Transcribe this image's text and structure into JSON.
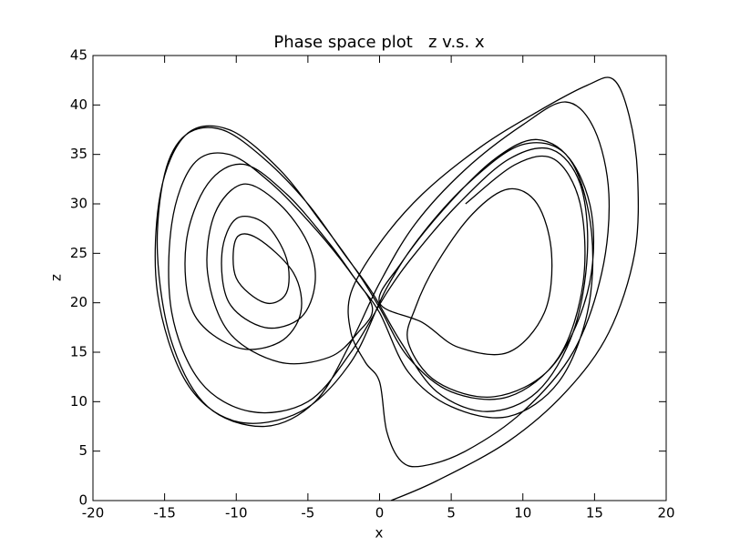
{
  "chart_data": {
    "type": "line",
    "title": "Phase space plot   z v.s. x",
    "xlabel": "x",
    "ylabel": "z",
    "color": "#000000",
    "x": [
      0.8,
      4,
      9,
      13,
      16,
      17.8,
      18,
      17.4,
      16.3,
      14.5,
      11,
      7,
      3,
      0,
      -2,
      -2,
      -1,
      0,
      0.5,
      1.5,
      3,
      6,
      10,
      13.5,
      15.5,
      16,
      15,
      13,
      10,
      6,
      2.5,
      0,
      -2,
      -4.5,
      -8,
      -12,
      -14.5,
      -15.5,
      -15,
      -13.5,
      -11,
      -8,
      -5,
      -2.5,
      -0.5,
      1.5,
      4,
      7.5,
      11,
      13.5,
      14.5,
      14,
      12,
      9,
      5.5,
      2.5,
      0.5,
      -2,
      -5,
      -9,
      -12.5,
      -14.5,
      -14.5,
      -13,
      -10.5,
      -7.5,
      -4.5,
      -2,
      -0.5,
      -1.5,
      -3.5,
      -7,
      -10.5,
      -12,
      -11.5,
      -9.5,
      -7,
      -5,
      -4.5,
      -5.5,
      -8,
      -10.5,
      -11,
      -10,
      -8,
      -6.5,
      -6.5,
      -8,
      -10,
      -10,
      -8.5,
      -6,
      -5.5,
      -7,
      -10,
      -13,
      -13.5,
      -12,
      -9.5,
      -6.5,
      -3.5,
      -1.5,
      0,
      2,
      5,
      9,
      12.5,
      14.5,
      14.8,
      13.5,
      11,
      8,
      4.5,
      1.5,
      0,
      3,
      5.5,
      9,
      11.5,
      12,
      11,
      9,
      6.5,
      4,
      2.5,
      2,
      4,
      8,
      12,
      14.5,
      14.8,
      13,
      10,
      6.5,
      3,
      0.5,
      -2,
      -5.5,
      -10,
      -13.5,
      -15.5,
      -15.3,
      -13.5,
      -10.5,
      -7,
      -4,
      -1.5,
      0,
      2,
      5,
      9,
      12.5,
      14.2,
      14,
      12.2,
      9.5,
      6
    ],
    "values": [
      0,
      2,
      6,
      11,
      17,
      25,
      33,
      39,
      42.6,
      42,
      39.3,
      35.7,
      31,
      26,
      21,
      17,
      14,
      12,
      7,
      4,
      3.5,
      5,
      9,
      15,
      23,
      31,
      37.5,
      40.3,
      38,
      33.5,
      28,
      22,
      16,
      10,
      7.5,
      9.5,
      16,
      25,
      33,
      37,
      37.5,
      34.5,
      30,
      25,
      21,
      16,
      11,
      9,
      11,
      17,
      25,
      32,
      35.5,
      34.5,
      30,
      25,
      21,
      15,
      10,
      9,
      12,
      19,
      28,
      34,
      35,
      32,
      27.5,
      23,
      19.5,
      17,
      14.5,
      14,
      17,
      23,
      29,
      32,
      30,
      26,
      22,
      18.5,
      17.5,
      20,
      25,
      28.5,
      28,
      24.5,
      21,
      20,
      22.5,
      26.5,
      26.5,
      23,
      19,
      16,
      15.5,
      19,
      26,
      32,
      34,
      31,
      26,
      22,
      19,
      13,
      9.5,
      8.5,
      12,
      19,
      27,
      34,
      36.5,
      34.5,
      29.5,
      24,
      20,
      18,
      15.5,
      15,
      19,
      25,
      30,
      31.5,
      29,
      24,
      19.5,
      16,
      12,
      10.5,
      13.5,
      21,
      29,
      35,
      36,
      32.5,
      27,
      21.5,
      14,
      9,
      8,
      12,
      21,
      31,
      37,
      37.5,
      33.5,
      28,
      23,
      19.5,
      14.5,
      11,
      10.5,
      14.5,
      22,
      30,
      34.5,
      34,
      30
    ],
    "xlim": [
      -20,
      20
    ],
    "xticks": [
      -20,
      -15,
      -10,
      -5,
      0,
      5,
      10,
      15,
      20
    ],
    "ylim": [
      0,
      45
    ],
    "yticks": [
      0,
      5,
      10,
      15,
      20,
      25,
      30,
      35,
      40,
      45
    ]
  }
}
